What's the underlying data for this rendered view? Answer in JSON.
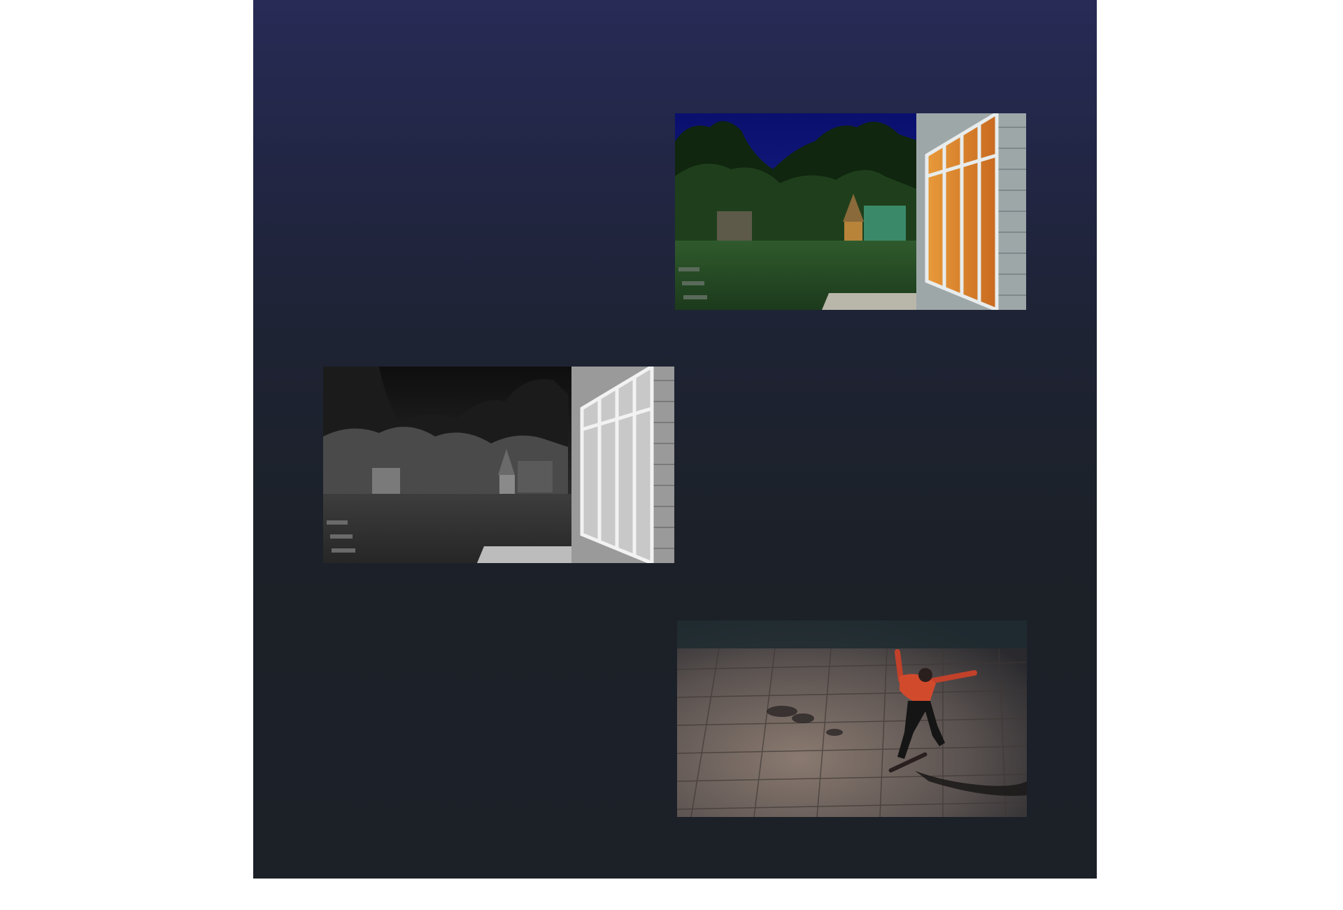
{
  "panel": {
    "gradient_top": "#272b56",
    "gradient_bottom": "#1c2027"
  },
  "photos": [
    {
      "name": "night-garden-color-photo",
      "icon": "photo-night-garden-color"
    },
    {
      "name": "night-garden-grayscale-photo",
      "icon": "photo-night-garden-grayscale"
    },
    {
      "name": "night-skateboarder-photo",
      "icon": "photo-skateboarder"
    }
  ]
}
